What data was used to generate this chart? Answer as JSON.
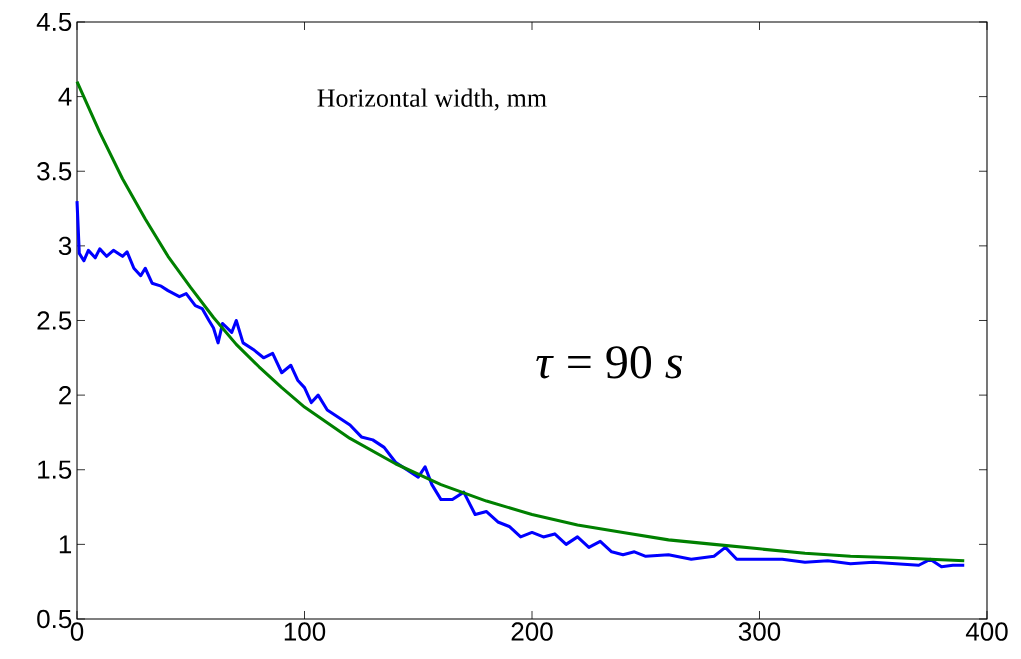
{
  "chart_data": {
    "type": "line",
    "title": "Horizontal width, mm",
    "annotations": [
      "*τ* = 90 *s*"
    ],
    "xlim": [
      0,
      400
    ],
    "xticks": [
      0,
      100,
      200,
      300,
      400
    ],
    "ylim": [
      0.5,
      4.5
    ],
    "yticks": [
      0.5,
      1,
      1.5,
      2,
      2.5,
      3,
      3.5,
      4,
      4.5
    ],
    "grid": false,
    "marker": "none",
    "line_style": "solid",
    "series": [
      {
        "color": "#0000ff",
        "x": [
          0,
          1,
          3,
          5,
          8,
          10,
          13,
          16,
          20,
          22,
          25,
          28,
          30,
          33,
          37,
          40,
          45,
          48,
          52,
          55,
          58,
          60,
          62,
          64,
          68,
          70,
          73,
          78,
          82,
          86,
          90,
          94,
          97,
          100,
          103,
          106,
          110,
          115,
          120,
          125,
          130,
          135,
          140,
          145,
          150,
          153,
          156,
          160,
          165,
          170,
          175,
          180,
          185,
          190,
          195,
          200,
          205,
          210,
          215,
          220,
          225,
          230,
          235,
          240,
          245,
          250,
          260,
          270,
          280,
          285,
          290,
          300,
          310,
          320,
          330,
          340,
          350,
          360,
          370,
          375,
          380,
          385,
          390
        ],
        "values": [
          3.3,
          2.95,
          2.9,
          2.97,
          2.92,
          2.98,
          2.93,
          2.97,
          2.93,
          2.96,
          2.85,
          2.8,
          2.85,
          2.75,
          2.73,
          2.7,
          2.66,
          2.68,
          2.6,
          2.58,
          2.5,
          2.45,
          2.35,
          2.48,
          2.42,
          2.5,
          2.35,
          2.3,
          2.25,
          2.28,
          2.15,
          2.2,
          2.1,
          2.05,
          1.95,
          2.0,
          1.9,
          1.85,
          1.8,
          1.72,
          1.7,
          1.65,
          1.55,
          1.5,
          1.45,
          1.52,
          1.4,
          1.3,
          1.3,
          1.35,
          1.2,
          1.22,
          1.15,
          1.12,
          1.05,
          1.08,
          1.05,
          1.07,
          1.0,
          1.05,
          0.98,
          1.02,
          0.95,
          0.93,
          0.95,
          0.92,
          0.93,
          0.9,
          0.92,
          0.98,
          0.9,
          0.9,
          0.9,
          0.88,
          0.89,
          0.87,
          0.88,
          0.87,
          0.86,
          0.9,
          0.85,
          0.86,
          0.86
        ]
      },
      {
        "color": "#008000",
        "x": [
          0,
          10,
          20,
          30,
          40,
          50,
          60,
          70,
          80,
          90,
          100,
          120,
          140,
          160,
          180,
          200,
          220,
          240,
          260,
          280,
          300,
          320,
          340,
          360,
          390
        ],
        "values": [
          4.1,
          3.76,
          3.45,
          3.18,
          2.93,
          2.72,
          2.52,
          2.34,
          2.19,
          2.05,
          1.92,
          1.71,
          1.54,
          1.4,
          1.29,
          1.2,
          1.13,
          1.08,
          1.03,
          1.0,
          0.97,
          0.94,
          0.92,
          0.91,
          0.89
        ]
      }
    ]
  }
}
